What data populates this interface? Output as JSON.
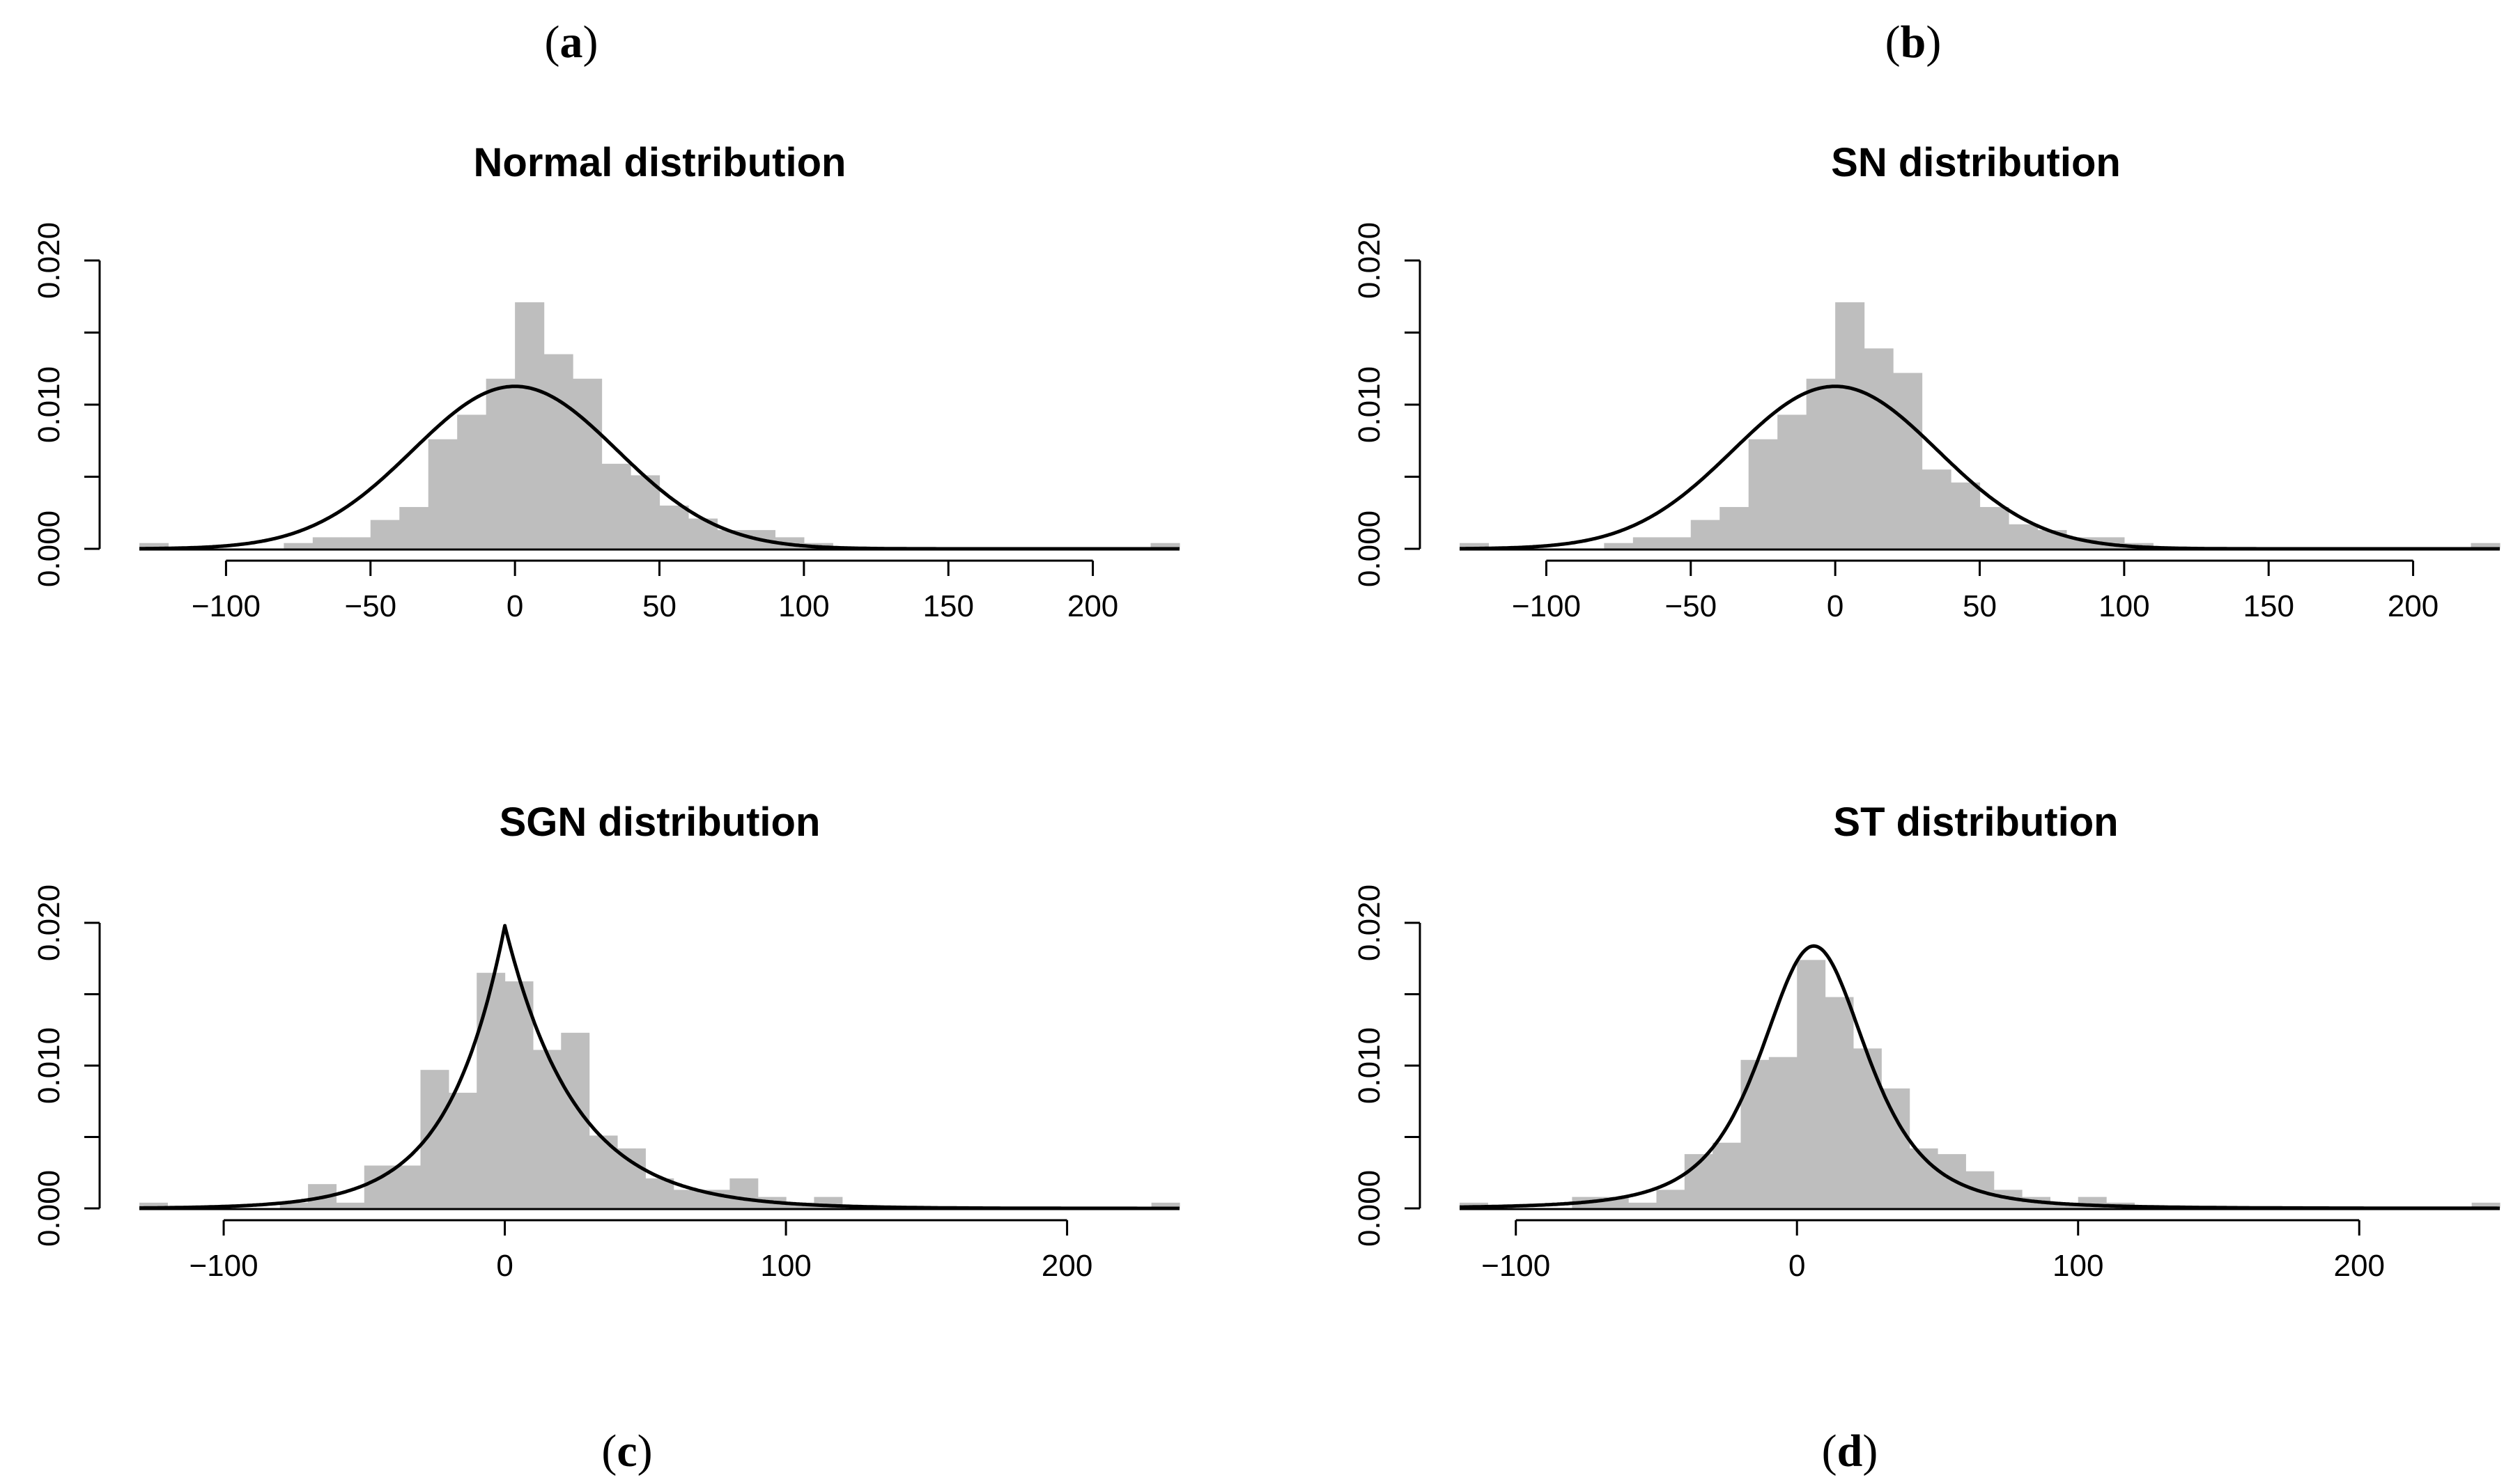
{
  "panel_labels": [
    "a",
    "b",
    "c",
    "d"
  ],
  "chart_data": [
    {
      "type": "bar",
      "subtype": "histogram-with-density",
      "title": "Normal distribution",
      "xlabel": "",
      "ylabel": "",
      "xlim": [
        -130,
        230
      ],
      "ylim": [
        0,
        0.02
      ],
      "x_ticks": [
        -100,
        -50,
        0,
        50,
        100,
        150,
        200
      ],
      "x_tick_labels": [
        "−100",
        "−50",
        "0",
        "50",
        "100",
        "150",
        "200"
      ],
      "y_ticks": [
        0,
        0.005,
        0.01,
        0.015,
        0.02
      ],
      "y_tick_labels": [
        "0.000",
        "",
        "0.010",
        "",
        "0.020"
      ],
      "bin_width": 10,
      "bins_start": [
        -130,
        -120,
        -110,
        -100,
        -90,
        -80,
        -70,
        -60,
        -50,
        -40,
        -30,
        -20,
        -10,
        0,
        10,
        20,
        30,
        40,
        50,
        60,
        70,
        80,
        90,
        100,
        110,
        120,
        130,
        140,
        150,
        160,
        170,
        180,
        190,
        200,
        210,
        220
      ],
      "density": [
        0.0004,
        0,
        0,
        0,
        0,
        0.0004,
        0.0008,
        0.0008,
        0.002,
        0.0029,
        0.0076,
        0.0093,
        0.0118,
        0.0171,
        0.0135,
        0.0118,
        0.0059,
        0.0051,
        0.003,
        0.0021,
        0.0013,
        0.0013,
        0.0008,
        0.0004,
        0,
        0,
        0,
        0,
        0,
        0,
        0,
        0,
        0,
        0,
        0,
        0.0004
      ],
      "curve": {
        "family": "normal",
        "mean": 0,
        "sd": 35.4
      }
    },
    {
      "type": "bar",
      "subtype": "histogram-with-density",
      "title": "SN distribution",
      "xlabel": "",
      "ylabel": "",
      "xlim": [
        -130,
        230
      ],
      "ylim": [
        0,
        0.02
      ],
      "x_ticks": [
        -100,
        -50,
        0,
        50,
        100,
        150,
        200
      ],
      "x_tick_labels": [
        "−100",
        "−50",
        "0",
        "50",
        "100",
        "150",
        "200"
      ],
      "y_ticks": [
        0,
        0.005,
        0.01,
        0.015,
        0.02
      ],
      "y_tick_labels": [
        "0.000",
        "",
        "0.010",
        "",
        "0.020"
      ],
      "bin_width": 10,
      "bins_start": [
        -130,
        -120,
        -110,
        -100,
        -90,
        -80,
        -70,
        -60,
        -50,
        -40,
        -30,
        -20,
        -10,
        0,
        10,
        20,
        30,
        40,
        50,
        60,
        70,
        80,
        90,
        100,
        110,
        120,
        130,
        140,
        150,
        160,
        170,
        180,
        190,
        200,
        210,
        220
      ],
      "density": [
        0.0004,
        0,
        0,
        0,
        0,
        0.0004,
        0.0008,
        0.0008,
        0.002,
        0.0029,
        0.0076,
        0.0093,
        0.0118,
        0.0171,
        0.0139,
        0.0122,
        0.0055,
        0.0046,
        0.0029,
        0.0017,
        0.0013,
        0.0008,
        0.0008,
        0.0004,
        0,
        0,
        0,
        0,
        0,
        0,
        0,
        0,
        0,
        0,
        0,
        0.0004
      ],
      "curve": {
        "family": "normal",
        "mean": 0,
        "sd": 35.4
      }
    },
    {
      "type": "bar",
      "subtype": "histogram-with-density",
      "title": "SGN distribution",
      "xlabel": "",
      "ylabel": "",
      "xlim": [
        -130,
        240
      ],
      "ylim": [
        0,
        0.02
      ],
      "x_ticks": [
        -100,
        0,
        100,
        200
      ],
      "x_tick_labels": [
        "−100",
        "0",
        "100",
        "200"
      ],
      "y_ticks": [
        0,
        0.005,
        0.01,
        0.015,
        0.02
      ],
      "y_tick_labels": [
        "0.000",
        "",
        "0.010",
        "",
        "0.020"
      ],
      "bin_width": 10,
      "bins_start": [
        -130,
        -120,
        -110,
        -100,
        -90,
        -80,
        -70,
        -60,
        -50,
        -40,
        -30,
        -20,
        -10,
        0,
        10,
        20,
        30,
        40,
        50,
        60,
        70,
        80,
        90,
        100,
        110,
        120,
        130,
        140,
        150,
        160,
        170,
        180,
        190,
        200,
        210,
        220,
        230
      ],
      "density": [
        0.0004,
        0,
        0,
        0,
        0,
        0.0004,
        0.0017,
        0.0004,
        0.003,
        0.003,
        0.0097,
        0.0081,
        0.0165,
        0.0159,
        0.0111,
        0.0123,
        0.0051,
        0.0042,
        0.0021,
        0.0013,
        0.0013,
        0.0021,
        0.0008,
        0.0004,
        0.0008,
        0,
        0,
        0,
        0,
        0,
        0,
        0,
        0,
        0,
        0,
        0,
        0.0004
      ],
      "curve": {
        "family": "laplace-like",
        "mode": 0,
        "peak": 0.0198,
        "scale_left": 20,
        "scale_right": 25
      }
    },
    {
      "type": "bar",
      "subtype": "histogram-with-density",
      "title": "ST distribution",
      "xlabel": "",
      "ylabel": "",
      "xlim": [
        -120,
        250
      ],
      "ylim": [
        0,
        0.02
      ],
      "x_ticks": [
        -100,
        0,
        100,
        200
      ],
      "x_tick_labels": [
        "−100",
        "0",
        "100",
        "200"
      ],
      "y_ticks": [
        0,
        0.005,
        0.01,
        0.015,
        0.02
      ],
      "y_tick_labels": [
        "0.000",
        "",
        "0.010",
        "",
        "0.020"
      ],
      "bin_width": 10,
      "bins_start": [
        -120,
        -110,
        -100,
        -90,
        -80,
        -70,
        -60,
        -50,
        -40,
        -30,
        -20,
        -10,
        0,
        10,
        20,
        30,
        40,
        50,
        60,
        70,
        80,
        90,
        100,
        110,
        120,
        130,
        140,
        150,
        160,
        170,
        180,
        190,
        200,
        210,
        220,
        230,
        240
      ],
      "density": [
        0.0004,
        0,
        0,
        0,
        0.0008,
        0.0008,
        0.0004,
        0.0013,
        0.0038,
        0.0046,
        0.0104,
        0.0106,
        0.0174,
        0.0148,
        0.0112,
        0.0084,
        0.0042,
        0.0038,
        0.0026,
        0.0013,
        0.0008,
        0.0004,
        0.0008,
        0.0004,
        0,
        0,
        0,
        0,
        0,
        0,
        0,
        0,
        0,
        0,
        0,
        0,
        0.0004
      ],
      "curve": {
        "family": "t",
        "location": 6,
        "scale": 20,
        "df": 3
      }
    }
  ]
}
